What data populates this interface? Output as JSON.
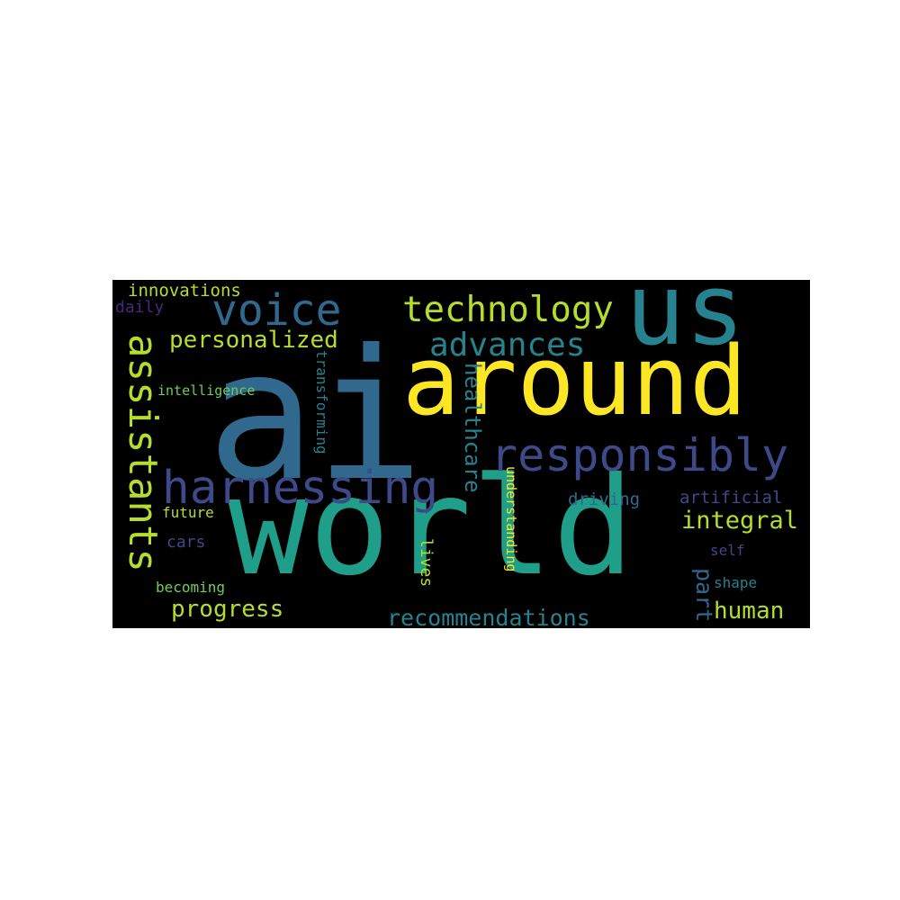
{
  "colors": {
    "background": "#000000",
    "page": "#ffffff",
    "yellow": "#fde725",
    "lime": "#b5de2b",
    "green": "#6ece58",
    "teal": "#1f9e89",
    "cyan": "#26828e",
    "blue": "#31688e",
    "indigo": "#3e4989",
    "purple": "#482878"
  },
  "words": {
    "ai": "ai",
    "world": "world",
    "around": "around",
    "us": "us",
    "harnessing": "harnessing",
    "responsibly": "responsibly",
    "assistants": "assistants",
    "voice": "voice",
    "technology": "technology",
    "advances": "advances",
    "personalized": "personalized",
    "innovations": "innovations",
    "daily": "daily",
    "intelligence": "intelligence",
    "transforming": "transforming",
    "healthcare": "healthcare",
    "understanding": "understanding",
    "driving": "driving",
    "artificial": "artificial",
    "integral": "integral",
    "future": "future",
    "cars": "cars",
    "self": "self",
    "part": "part",
    "shape": "shape",
    "lives": "lives",
    "becoming": "becoming",
    "progress": "progress",
    "human": "human",
    "recommendations": "recommendations"
  }
}
